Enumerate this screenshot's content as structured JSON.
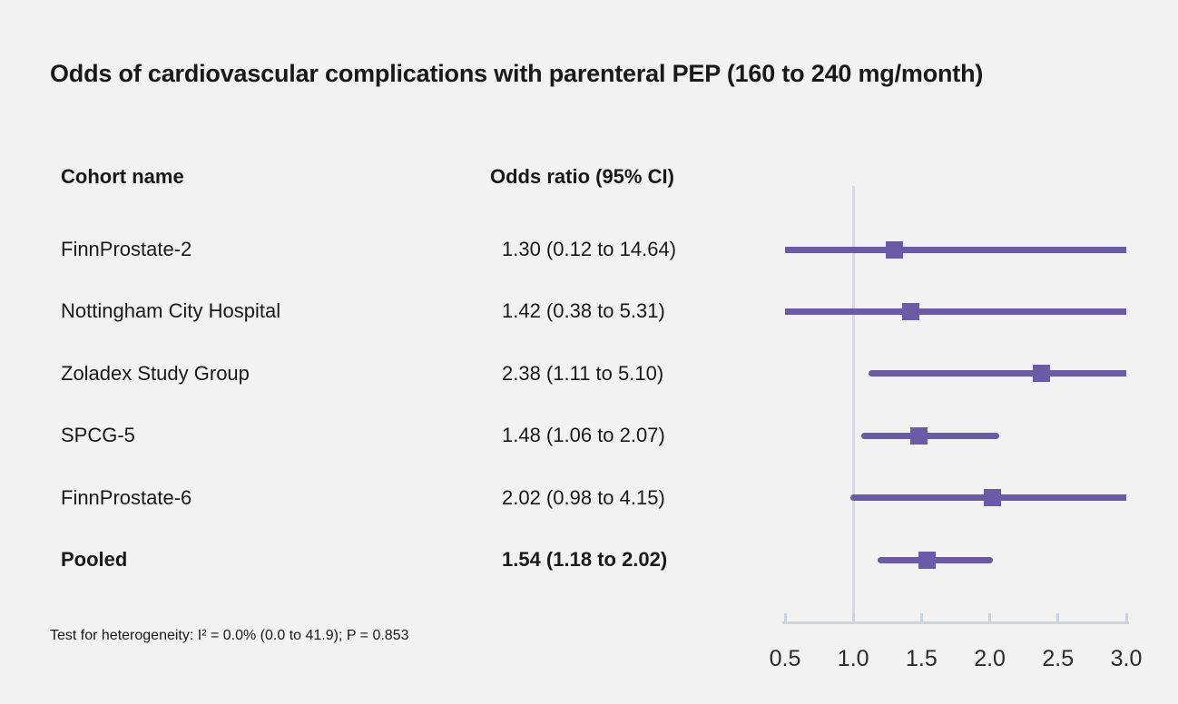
{
  "title": "Odds of cardiovascular complications with parenteral PEP (160 to 240 mg/month)",
  "columns": {
    "cohort": "Cohort name",
    "odds": "Odds ratio (95% CI)"
  },
  "footnote": "Test for heterogeneity: I² = 0.0% (0.0 to 41.9); P = 0.853",
  "colors": {
    "marker": "#6b5aa6",
    "ci_line": "#6b5aa6",
    "axis": "#ccd3db",
    "reference_line": "#d6d9e2",
    "background": "#f2f2f2",
    "text": "#191919"
  },
  "chart_data": {
    "type": "forest",
    "title": "Odds of cardiovascular complications with parenteral PEP (160 to 240 mg/month)",
    "xlabel": "",
    "xlim": [
      0.5,
      3.0
    ],
    "x_ticks": [
      0.5,
      1.0,
      1.5,
      2.0,
      2.5,
      3.0
    ],
    "reference_value": 1.0,
    "grid": false,
    "legend": "none",
    "studies": [
      {
        "name": "FinnProstate-2",
        "or": 1.3,
        "ci_low": 0.12,
        "ci_high": 14.64,
        "label": "1.30 (0.12 to 14.64)",
        "pooled": false
      },
      {
        "name": "Nottingham City Hospital",
        "or": 1.42,
        "ci_low": 0.38,
        "ci_high": 5.31,
        "label": "1.42 (0.38 to 5.31)",
        "pooled": false
      },
      {
        "name": "Zoladex Study Group",
        "or": 2.38,
        "ci_low": 1.11,
        "ci_high": 5.1,
        "label": "2.38 (1.11 to 5.10)",
        "pooled": false
      },
      {
        "name": "SPCG-5",
        "or": 1.48,
        "ci_low": 1.06,
        "ci_high": 2.07,
        "label": "1.48 (1.06 to 2.07)",
        "pooled": false
      },
      {
        "name": "FinnProstate-6",
        "or": 2.02,
        "ci_low": 0.98,
        "ci_high": 4.15,
        "label": "2.02 (0.98 to 4.15)",
        "pooled": false
      },
      {
        "name": "Pooled",
        "or": 1.54,
        "ci_low": 1.18,
        "ci_high": 2.02,
        "label": "1.54 (1.18 to 2.02)",
        "pooled": true
      }
    ]
  }
}
